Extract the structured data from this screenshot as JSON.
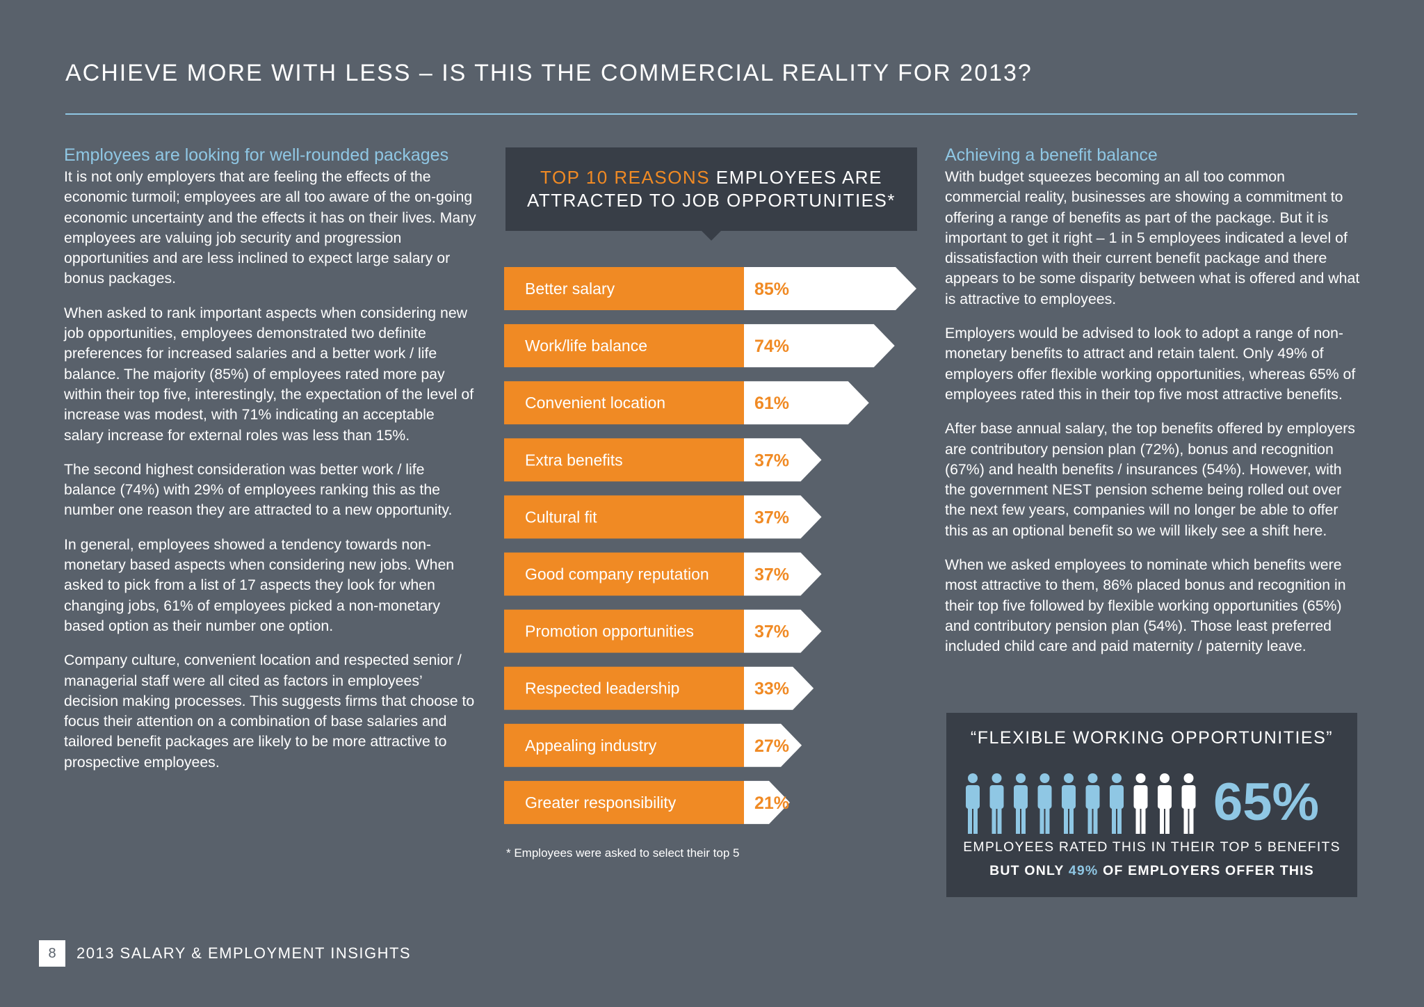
{
  "page": {
    "title": "ACHIEVE MORE WITH LESS – IS THIS THE COMMERCIAL REALITY FOR 2013?",
    "page_number": "8",
    "footer_title": "2013 SALARY & EMPLOYMENT INSIGHTS"
  },
  "colors": {
    "background": "#59616b",
    "panel": "#383e47",
    "orange": "#f08a24",
    "light_blue": "#8fc7e4",
    "white": "#ffffff"
  },
  "left_column": {
    "heading": "Employees are looking for well-rounded packages",
    "paragraphs": [
      "It is not only employers that are feeling the effects of the economic turmoil; employees are all too aware of the on-going economic uncertainty and the effects it has on their lives. Many employees are valuing job security and progression opportunities and are less inclined to expect large salary or bonus packages.",
      "When asked to rank important aspects when considering new job opportunities, employees demonstrated two definite preferences for increased salaries and a better work / life balance. The majority (85%) of employees rated more pay within their top five, interestingly, the expectation of the level of increase was modest, with 71% indicating an acceptable salary increase for external roles was less than 15%.",
      "The second highest consideration was better work / life balance (74%) with 29% of employees ranking this as the number one reason they are attracted to a new opportunity.",
      "In general, employees showed a tendency towards non-monetary based aspects when considering new jobs.  When asked to pick from a list of 17 aspects they look for when changing jobs, 61% of employees picked a non-monetary based option as their number one option.",
      "Company culture, convenient location and respected senior / managerial staff were all cited as factors in employees’ decision making processes. This suggests firms that choose to focus their attention on a combination of base salaries and tailored benefit packages are likely to be more attractive to prospective employees."
    ]
  },
  "right_column": {
    "heading": "Achieving a benefit balance",
    "paragraphs": [
      "With budget squeezes becoming an all too common commercial reality, businesses are showing a commitment to offering a range of benefits as part of the package. But it is important to get it right – 1 in 5 employees indicated a level of dissatisfaction with their current benefit package and there appears to be some disparity between what is offered and what is attractive to employees.",
      "Employers would be advised to look to adopt a range of non-monetary benefits to attract and retain talent. Only 49% of employers offer flexible working opportunities, whereas 65% of employees rated this in their top five most attractive benefits.",
      "After base annual salary, the top benefits offered by employers are contributory pension plan (72%), bonus and recognition (67%) and health benefits / insurances (54%). However, with the government NEST pension scheme being rolled out over the next few years, companies will no longer be able to offer this as an optional benefit so we will likely see a shift here.",
      "When we asked employees to nominate which benefits were most attractive to them, 86% placed bonus and recognition in their top five followed by flexible working opportunities (65%) and contributory pension plan (54%). Those least preferred included child care and paid maternity / paternity leave."
    ]
  },
  "chart_header": {
    "accent": "TOP 10 REASONS",
    "line1_rest": " EMPLOYEES ARE",
    "line2": "ATTRACTED TO JOB OPPORTUNITIES*"
  },
  "chart_data": {
    "type": "bar",
    "title": "TOP 10 REASONS EMPLOYEES ARE ATTRACTED TO JOB OPPORTUNITIES*",
    "categories": [
      "Better salary",
      "Work/life balance",
      "Convenient location",
      "Extra benefits",
      "Cultural fit",
      "Good company reputation",
      "Promotion opportunities",
      "Respected leadership",
      "Appealing industry",
      "Greater responsibility"
    ],
    "values": [
      85,
      74,
      61,
      37,
      37,
      37,
      37,
      33,
      27,
      21
    ],
    "value_labels": [
      "85%",
      "74%",
      "61%",
      "37%",
      "37%",
      "37%",
      "37%",
      "33%",
      "27%",
      "21%"
    ],
    "unit": "%",
    "footnote": "* Employees were asked to select their top 5"
  },
  "callout": {
    "title": "“FLEXIBLE WORKING OPPORTUNITIES”",
    "percentage": "65%",
    "people_total": 10,
    "people_highlighted": 7,
    "line1": "EMPLOYEES RATED THIS IN THEIR TOP 5 BENEFITS",
    "line2_prefix": "BUT ONLY ",
    "line2_highlight": "49%",
    "line2_suffix": " OF EMPLOYERS OFFER THIS"
  }
}
